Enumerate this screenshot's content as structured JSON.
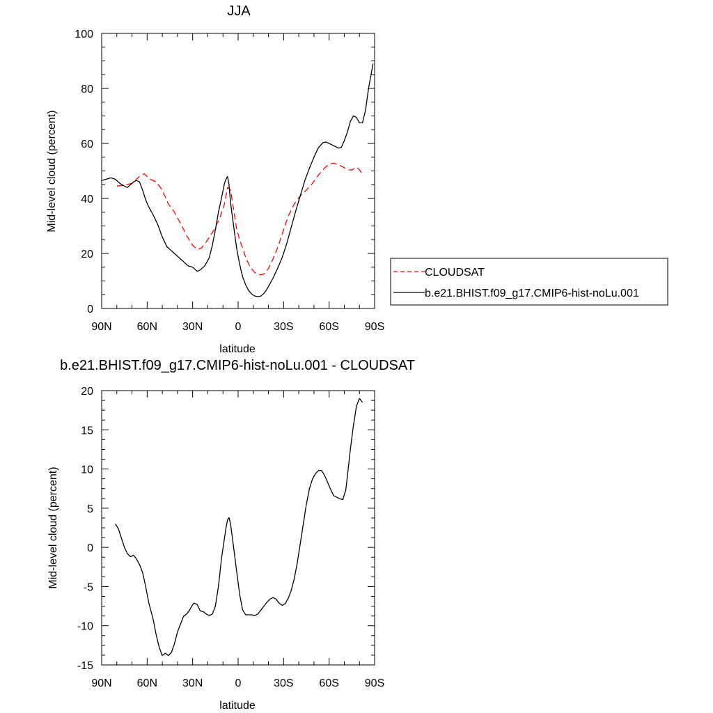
{
  "colors": {
    "model": "#000000",
    "cloudsat": "#ff0000"
  },
  "chart_data": [
    {
      "type": "line",
      "title": "JJA",
      "xlabel": "latitude",
      "ylabel": "Mid-level cloud (percent)",
      "xlim": [
        90,
        -90
      ],
      "ylim": [
        0,
        100
      ],
      "xticks": [
        {
          "v": 90,
          "label": "90N"
        },
        {
          "v": 60,
          "label": "60N"
        },
        {
          "v": 30,
          "label": "30N"
        },
        {
          "v": 0,
          "label": "0"
        },
        {
          "v": -30,
          "label": "30S"
        },
        {
          "v": -60,
          "label": "60S"
        },
        {
          "v": -90,
          "label": "90S"
        }
      ],
      "yticks": [
        0,
        20,
        40,
        60,
        80,
        100
      ],
      "legend": {
        "placement": "right",
        "entries": [
          "CLOUDSAT",
          "b.e21.BHIST.f09_g17.CMIP6-hist-noLu.001"
        ]
      },
      "series": [
        {
          "name": "CLOUDSAT",
          "style": "dashed",
          "color": "#ff0000",
          "x": [
            80,
            75,
            70,
            65,
            62,
            58,
            54,
            50,
            46,
            42,
            38,
            34,
            30,
            27,
            24,
            20,
            16,
            12,
            9,
            7,
            5,
            3,
            1,
            -1,
            -3,
            -5,
            -8,
            -11,
            -14,
            -17,
            -20,
            -23,
            -26,
            -29,
            -33,
            -37,
            -41,
            -45,
            -49,
            -53,
            -57,
            -60,
            -63,
            -66,
            -69,
            -72,
            -75,
            -78,
            -80,
            -82
          ],
          "y": [
            44.5,
            44.8,
            45.5,
            48.0,
            49.0,
            47.0,
            46.0,
            43.0,
            38.0,
            35.0,
            31.0,
            26.5,
            23.0,
            21.5,
            22.0,
            25.0,
            28.5,
            33.0,
            38.0,
            44.0,
            43.0,
            36.0,
            29.0,
            25.0,
            22.0,
            18.5,
            15.0,
            13.0,
            12.2,
            12.5,
            14.5,
            18.0,
            22.0,
            27.0,
            33.5,
            38.0,
            41.0,
            43.0,
            45.5,
            48.5,
            51.0,
            52.5,
            52.8,
            52.3,
            51.5,
            50.5,
            50.3,
            51.3,
            50.5,
            48.7
          ]
        },
        {
          "name": "b.e21.BHIST.f09_g17.CMIP6-hist-noLu.001",
          "style": "solid",
          "color": "#000000",
          "x": [
            90,
            87,
            84,
            81,
            78,
            75,
            73,
            71,
            69,
            67,
            65,
            63,
            61,
            59,
            56,
            53,
            50,
            47,
            44,
            41,
            38,
            35,
            33,
            30,
            27,
            25,
            22,
            19,
            17,
            15,
            13,
            11,
            9,
            8,
            7,
            6,
            5,
            3,
            1,
            -1,
            -3,
            -5,
            -7,
            -9,
            -11,
            -13,
            -15,
            -17,
            -19,
            -21,
            -23,
            -26,
            -29,
            -32,
            -35,
            -38,
            -41,
            -44,
            -47,
            -50,
            -53,
            -56,
            -58,
            -60,
            -63,
            -66,
            -68,
            -70,
            -72,
            -74,
            -76,
            -78,
            -80,
            -82,
            -84,
            -86,
            -88,
            -89
          ],
          "y": [
            46.5,
            47.0,
            47.5,
            47.0,
            45.5,
            44.5,
            44.0,
            45.0,
            46.0,
            46.5,
            46.0,
            43.0,
            39.5,
            37.0,
            34.0,
            30.5,
            26.0,
            22.5,
            21.0,
            19.5,
            18.0,
            16.5,
            15.5,
            15.0,
            13.5,
            14.0,
            15.5,
            18.5,
            23.0,
            28.5,
            35.0,
            40.0,
            45.5,
            47.0,
            48.0,
            45.0,
            38.5,
            30.0,
            22.0,
            16.0,
            11.5,
            8.5,
            6.5,
            5.2,
            4.5,
            4.3,
            4.5,
            5.5,
            7.0,
            9.0,
            11.0,
            14.5,
            18.5,
            23.5,
            29.5,
            35.5,
            41.0,
            46.5,
            51.0,
            55.0,
            58.5,
            60.3,
            60.5,
            60.0,
            59.2,
            58.3,
            58.5,
            61.0,
            64.0,
            68.0,
            70.0,
            69.5,
            67.5,
            67.5,
            72.0,
            80.0,
            86.0,
            89.0
          ]
        }
      ]
    },
    {
      "type": "line",
      "title": "b.e21.BHIST.f09_g17.CMIP6-hist-noLu.001 - CLOUDSAT",
      "xlabel": "latitude",
      "ylabel": "Mid-level cloud (percent)",
      "xlim": [
        90,
        -90
      ],
      "ylim": [
        -15,
        20
      ],
      "xticks": [
        {
          "v": 90,
          "label": "90N"
        },
        {
          "v": 60,
          "label": "60N"
        },
        {
          "v": 30,
          "label": "30N"
        },
        {
          "v": 0,
          "label": "0"
        },
        {
          "v": -30,
          "label": "30S"
        },
        {
          "v": -60,
          "label": "60S"
        },
        {
          "v": -90,
          "label": "90S"
        }
      ],
      "yticks": [
        -15,
        -10,
        -5,
        0,
        5,
        10,
        15,
        20
      ],
      "series": [
        {
          "style": "solid",
          "color": "#000000",
          "x": [
            81,
            79,
            77,
            75,
            73,
            71,
            69,
            67,
            65,
            63,
            61,
            59,
            56,
            54,
            52,
            50,
            48,
            46,
            44,
            42,
            40,
            38,
            36,
            34,
            32,
            30,
            29,
            27,
            25,
            23,
            21,
            19,
            17,
            15,
            13,
            11,
            9,
            8,
            7,
            6,
            5,
            3,
            1,
            -1,
            -3,
            -5,
            -7,
            -9,
            -11,
            -13,
            -15,
            -17,
            -19,
            -21,
            -23,
            -25,
            -27,
            -29,
            -31,
            -33,
            -35,
            -37,
            -39,
            -41,
            -43,
            -45,
            -47,
            -49,
            -51,
            -53,
            -55,
            -57,
            -59,
            -61,
            -63,
            -65,
            -67,
            -69,
            -70,
            -71,
            -72,
            -74,
            -76,
            -78,
            -80,
            -82
          ],
          "y": [
            3.0,
            2.4,
            1.2,
            0.0,
            -0.8,
            -1.2,
            -1.0,
            -1.5,
            -2.2,
            -3.2,
            -5.0,
            -7.0,
            -9.2,
            -11.2,
            -12.8,
            -13.8,
            -13.5,
            -13.8,
            -13.4,
            -12.3,
            -10.8,
            -9.8,
            -8.8,
            -8.5,
            -8.0,
            -7.3,
            -7.1,
            -7.3,
            -8.1,
            -8.2,
            -8.5,
            -8.7,
            -8.5,
            -7.5,
            -5.0,
            -1.5,
            1.2,
            2.5,
            3.5,
            3.8,
            3.0,
            0.0,
            -3.0,
            -6.0,
            -8.0,
            -8.6,
            -8.6,
            -8.6,
            -8.7,
            -8.5,
            -8.0,
            -7.5,
            -7.0,
            -6.6,
            -6.4,
            -6.6,
            -7.1,
            -7.4,
            -7.2,
            -6.5,
            -5.5,
            -4.0,
            -2.0,
            0.5,
            3.0,
            5.5,
            7.5,
            8.7,
            9.4,
            9.8,
            9.8,
            9.2,
            8.3,
            7.4,
            6.6,
            6.4,
            6.2,
            6.1,
            6.7,
            7.3,
            9.0,
            12.5,
            15.5,
            18.0,
            19.0,
            18.5
          ]
        }
      ]
    }
  ]
}
